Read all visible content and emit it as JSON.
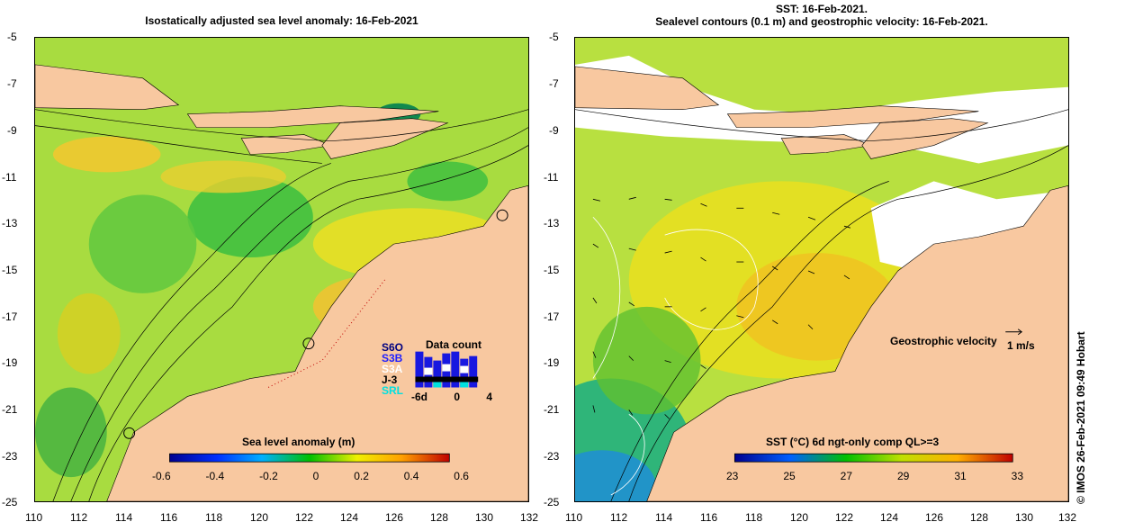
{
  "left": {
    "title": "Isostatically adjusted sea level anomaly: 16-Feb-2021",
    "colorbar_label": "Sea level anomaly (m)",
    "colorbar_ticks": [
      "-0.6",
      "-0.4",
      "-0.2",
      "0",
      "0.2",
      "0.4",
      "0.6"
    ],
    "data_count": {
      "title": "Data count",
      "satellites": [
        "S6O",
        "S3B",
        "S3A",
        "J-3",
        "SRL"
      ],
      "satellite_colors": [
        "#000080",
        "#2020ff",
        "#ffffff",
        "#000000",
        "#00ffff"
      ],
      "x_ticks": [
        "-6d",
        "0",
        "4"
      ]
    }
  },
  "right": {
    "title": "SST: 16-Feb-2021.\nSealevel contours (0.1 m) and geostrophic velocity: 16-Feb-2021.",
    "colorbar_label": "SST (°C) 6d ngt-only comp QL>=3",
    "colorbar_ticks": [
      "23",
      "25",
      "27",
      "29",
      "31",
      "33"
    ],
    "velocity_label": "Geostrophic velocity",
    "velocity_scale": "1 m/s"
  },
  "axes": {
    "y_ticks": [
      "-5",
      "-7",
      "-9",
      "-11",
      "-13",
      "-15",
      "-17",
      "-19",
      "-21",
      "-23",
      "-25"
    ],
    "x_ticks": [
      "110",
      "112",
      "114",
      "116",
      "118",
      "120",
      "122",
      "124",
      "126",
      "128",
      "130",
      "132"
    ]
  },
  "credit": "© IMOS 26-Feb-2021 09:49 Hobart",
  "colors": {
    "land": "#f8c8a0",
    "no_data": "#ffffff",
    "ocean_main": "#b0e040"
  }
}
